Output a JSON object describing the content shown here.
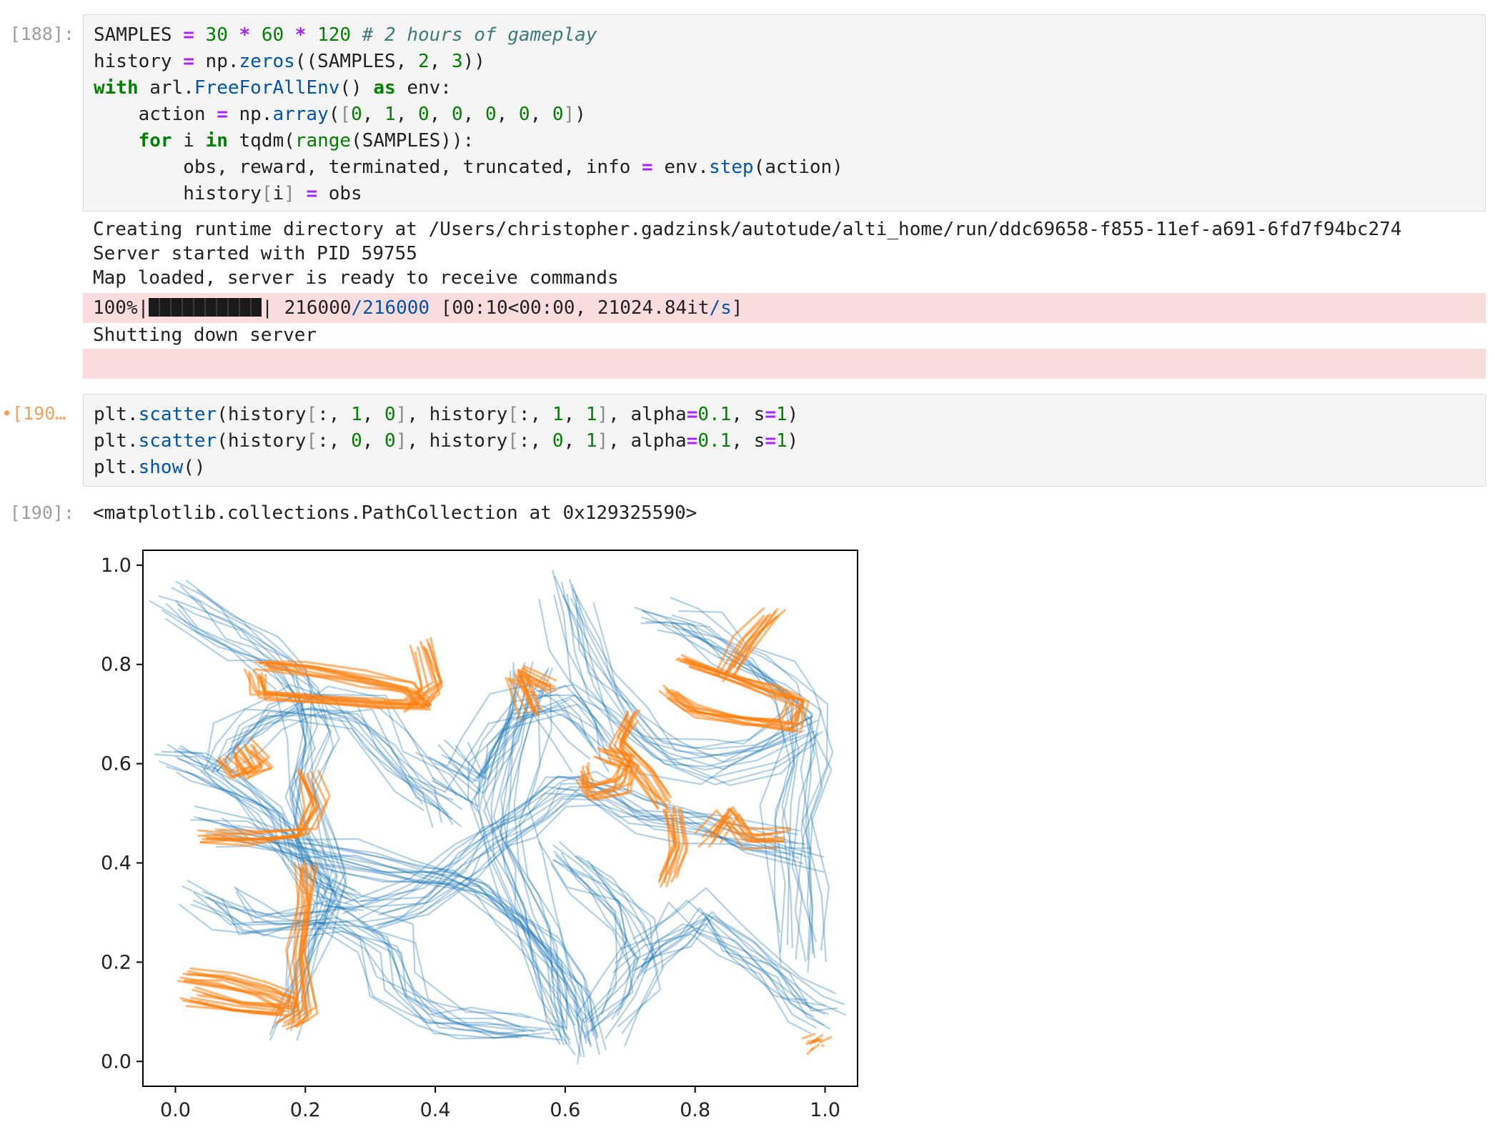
{
  "cells": [
    {
      "prompt": "[188]:",
      "code": {
        "line1": {
          "a": "SAMPLES ",
          "b": "=",
          "c": " ",
          "d": "30",
          "e": " ",
          "f": "*",
          "g": " ",
          "h": "60",
          "i": " ",
          "j": "*",
          "k": " ",
          "l": "120",
          "m": " ",
          "n": "# 2 hours of gameplay"
        },
        "line2": {
          "a": "history ",
          "b": "=",
          "c": " np.",
          "d": "zeros",
          "e": "((SAMPLES, ",
          "f": "2",
          "g": ", ",
          "h": "3",
          "i": "))"
        },
        "line3": {
          "a": "with",
          "b": " arl.",
          "c": "FreeForAllEnv",
          "d": "() ",
          "e": "as",
          "f": " env:"
        },
        "line4": {
          "a": "    action ",
          "b": "=",
          "c": " np.",
          "d": "array",
          "e": "(",
          "f": "[",
          "g": "0",
          "h": ", ",
          "i": "1",
          "j": ", ",
          "k": "0",
          "l": ", ",
          "m": "0",
          "n": ", ",
          "o": "0",
          "p": ", ",
          "q": "0",
          "r": ", ",
          "s": "0",
          "t": "]",
          "u": ")"
        },
        "line5": {
          "a": "    ",
          "b": "for",
          "c": " i ",
          "d": "in",
          "e": " tqdm(",
          "f": "range",
          "g": "(SAMPLES)):"
        },
        "line6": {
          "a": "        obs, reward, terminated, truncated, info ",
          "b": "=",
          "c": " env.",
          "d": "step",
          "e": "(action)"
        },
        "line7": {
          "a": "        history",
          "b": "[",
          "c": "i",
          "d": "]",
          "e": " ",
          "f": "=",
          "g": " obs"
        }
      },
      "stdout": [
        "Creating runtime directory at /Users/christopher.gadzinsk/autotude/alti_home/run/ddc69658-f855-11ef-a691-6fd7f94bc274",
        "Server started with PID 59755",
        "Map loaded, server is ready to receive commands"
      ],
      "progress": {
        "percent_label": "100%|",
        "after_bar": "| ",
        "done": "216000",
        "total": "/216000",
        "rest": " [00:10<00:00, 21024.84it",
        "unit": "/s",
        "close": "]",
        "fraction": 1.0
      },
      "stdout_after": "Shutting down server"
    },
    {
      "prompt": "•[190…",
      "code": {
        "line1": {
          "a": "plt.",
          "b": "scatter",
          "c": "(history",
          "d": "[",
          "e": ":, ",
          "f": "1",
          "g": ", ",
          "h": "0",
          "i": "]",
          "j": ", history",
          "k": "[",
          "l": ":, ",
          "m": "1",
          "n": ", ",
          "o": "1",
          "p": "]",
          "q": ", alpha",
          "r": "=",
          "s": "0.1",
          "t": ", s",
          "u": "=",
          "v": "1",
          "w": ")"
        },
        "line2": {
          "a": "plt.",
          "b": "scatter",
          "c": "(history",
          "d": "[",
          "e": ":, ",
          "f": "0",
          "g": ", ",
          "h": "0",
          "i": "]",
          "j": ", history",
          "k": "[",
          "l": ":, ",
          "m": "0",
          "n": ", ",
          "o": "1",
          "p": "]",
          "q": ", alpha",
          "r": "=",
          "s": "0.1",
          "t": ", s",
          "u": "=",
          "v": "1",
          "w": ")"
        },
        "line3": {
          "a": "plt.",
          "b": "show",
          "c": "()"
        }
      }
    },
    {
      "prompt": "[190]:",
      "output_text": "<matplotlib.collections.PathCollection at 0x129325590>"
    }
  ],
  "chart_data": {
    "type": "scatter",
    "xlim": [
      -0.05,
      1.05
    ],
    "ylim": [
      -0.05,
      1.03
    ],
    "xticks": [
      "0.0",
      "0.2",
      "0.4",
      "0.6",
      "0.8",
      "1.0"
    ],
    "yticks": [
      "0.0",
      "0.2",
      "0.4",
      "0.6",
      "0.8",
      "1.0"
    ],
    "grid": false,
    "colors": {
      "series1": "#1f77b4",
      "series2": "#ff7f0e"
    },
    "series": [
      {
        "alpha": 0.1,
        "trails": [
          [
            [
              0.0,
              0.93
            ],
            [
              0.05,
              0.9
            ],
            [
              0.1,
              0.85
            ],
            [
              0.15,
              0.82
            ],
            [
              0.2,
              0.75
            ],
            [
              0.22,
              0.65
            ],
            [
              0.2,
              0.55
            ],
            [
              0.22,
              0.45
            ],
            [
              0.25,
              0.35
            ],
            [
              0.22,
              0.25
            ],
            [
              0.2,
              0.15
            ],
            [
              0.18,
              0.08
            ]
          ],
          [
            [
              0.05,
              0.47
            ],
            [
              0.12,
              0.45
            ],
            [
              0.2,
              0.42
            ],
            [
              0.3,
              0.4
            ],
            [
              0.38,
              0.38
            ],
            [
              0.45,
              0.35
            ],
            [
              0.5,
              0.3
            ],
            [
              0.55,
              0.25
            ],
            [
              0.6,
              0.15
            ],
            [
              0.62,
              0.05
            ]
          ],
          [
            [
              0.3,
              0.3
            ],
            [
              0.38,
              0.33
            ],
            [
              0.45,
              0.4
            ],
            [
              0.5,
              0.45
            ],
            [
              0.55,
              0.5
            ],
            [
              0.6,
              0.55
            ],
            [
              0.65,
              0.55
            ],
            [
              0.72,
              0.5
            ],
            [
              0.8,
              0.48
            ],
            [
              0.88,
              0.45
            ],
            [
              0.97,
              0.42
            ]
          ],
          [
            [
              0.55,
              0.78
            ],
            [
              0.54,
              0.7
            ],
            [
              0.52,
              0.6
            ],
            [
              0.5,
              0.5
            ],
            [
              0.52,
              0.4
            ],
            [
              0.55,
              0.3
            ],
            [
              0.58,
              0.2
            ],
            [
              0.6,
              0.1
            ],
            [
              0.62,
              0.04
            ]
          ],
          [
            [
              0.6,
              0.95
            ],
            [
              0.62,
              0.85
            ],
            [
              0.66,
              0.75
            ],
            [
              0.7,
              0.68
            ],
            [
              0.75,
              0.62
            ],
            [
              0.82,
              0.6
            ],
            [
              0.9,
              0.62
            ],
            [
              0.97,
              0.68
            ]
          ],
          [
            [
              0.05,
              0.35
            ],
            [
              0.1,
              0.3
            ],
            [
              0.15,
              0.28
            ],
            [
              0.25,
              0.3
            ],
            [
              0.32,
              0.25
            ],
            [
              0.35,
              0.15
            ],
            [
              0.4,
              0.1
            ],
            [
              0.48,
              0.08
            ],
            [
              0.55,
              0.07
            ]
          ],
          [
            [
              0.7,
              0.2
            ],
            [
              0.75,
              0.25
            ],
            [
              0.8,
              0.3
            ],
            [
              0.85,
              0.25
            ],
            [
              0.9,
              0.2
            ],
            [
              0.95,
              0.12
            ],
            [
              0.99,
              0.1
            ]
          ],
          [
            [
              0.4,
              0.6
            ],
            [
              0.45,
              0.55
            ],
            [
              0.48,
              0.62
            ],
            [
              0.52,
              0.7
            ],
            [
              0.58,
              0.72
            ],
            [
              0.62,
              0.68
            ],
            [
              0.65,
              0.62
            ]
          ],
          [
            [
              0.07,
              0.6
            ],
            [
              0.1,
              0.65
            ],
            [
              0.15,
              0.7
            ],
            [
              0.2,
              0.72
            ],
            [
              0.28,
              0.7
            ],
            [
              0.33,
              0.62
            ],
            [
              0.38,
              0.55
            ],
            [
              0.42,
              0.5
            ]
          ],
          [
            [
              0.75,
              0.9
            ],
            [
              0.8,
              0.88
            ],
            [
              0.86,
              0.82
            ],
            [
              0.92,
              0.78
            ],
            [
              0.96,
              0.72
            ],
            [
              0.97,
              0.6
            ],
            [
              0.95,
              0.5
            ],
            [
              0.96,
              0.35
            ],
            [
              0.97,
              0.22
            ]
          ],
          [
            [
              0.0,
              0.62
            ],
            [
              0.04,
              0.6
            ],
            [
              0.1,
              0.56
            ],
            [
              0.15,
              0.5
            ],
            [
              0.18,
              0.42
            ],
            [
              0.22,
              0.36
            ],
            [
              0.28,
              0.33
            ]
          ],
          [
            [
              0.6,
              0.42
            ],
            [
              0.65,
              0.36
            ],
            [
              0.7,
              0.3
            ],
            [
              0.72,
              0.22
            ],
            [
              0.7,
              0.15
            ],
            [
              0.66,
              0.08
            ]
          ]
        ]
      },
      {
        "alpha": 0.1,
        "trails": [
          [
            [
              0.13,
              0.8
            ],
            [
              0.2,
              0.79
            ],
            [
              0.28,
              0.77
            ],
            [
              0.36,
              0.75
            ],
            [
              0.38,
              0.72
            ],
            [
              0.3,
              0.72
            ],
            [
              0.2,
              0.73
            ],
            [
              0.13,
              0.74
            ],
            [
              0.12,
              0.78
            ]
          ],
          [
            [
              0.78,
              0.8
            ],
            [
              0.85,
              0.77
            ],
            [
              0.92,
              0.74
            ],
            [
              0.96,
              0.72
            ],
            [
              0.95,
              0.67
            ],
            [
              0.88,
              0.68
            ],
            [
              0.8,
              0.7
            ],
            [
              0.76,
              0.74
            ]
          ],
          [
            [
              0.02,
              0.17
            ],
            [
              0.08,
              0.16
            ],
            [
              0.14,
              0.14
            ],
            [
              0.18,
              0.12
            ],
            [
              0.17,
              0.1
            ],
            [
              0.1,
              0.11
            ],
            [
              0.03,
              0.13
            ]
          ],
          [
            [
              0.08,
              0.62
            ],
            [
              0.1,
              0.58
            ],
            [
              0.13,
              0.6
            ],
            [
              0.11,
              0.64
            ]
          ],
          [
            [
              0.66,
              0.62
            ],
            [
              0.7,
              0.6
            ],
            [
              0.69,
              0.56
            ],
            [
              0.64,
              0.54
            ],
            [
              0.63,
              0.58
            ]
          ],
          [
            [
              0.2,
              0.58
            ],
            [
              0.22,
              0.52
            ],
            [
              0.2,
              0.46
            ],
            [
              0.12,
              0.45
            ],
            [
              0.05,
              0.45
            ]
          ],
          [
            [
              0.2,
              0.4
            ],
            [
              0.2,
              0.32
            ],
            [
              0.19,
              0.22
            ],
            [
              0.2,
              0.1
            ],
            [
              0.17,
              0.08
            ]
          ],
          [
            [
              0.77,
              0.5
            ],
            [
              0.78,
              0.43
            ],
            [
              0.76,
              0.36
            ]
          ],
          [
            [
              0.82,
              0.45
            ],
            [
              0.85,
              0.5
            ],
            [
              0.88,
              0.45
            ],
            [
              0.93,
              0.45
            ]
          ],
          [
            [
              0.38,
              0.84
            ],
            [
              0.4,
              0.76
            ],
            [
              0.37,
              0.72
            ]
          ],
          [
            [
              0.55,
              0.7
            ],
            [
              0.52,
              0.78
            ],
            [
              0.57,
              0.75
            ]
          ],
          [
            [
              0.75,
              0.52
            ],
            [
              0.72,
              0.58
            ],
            [
              0.68,
              0.64
            ],
            [
              0.7,
              0.7
            ]
          ],
          [
            [
              0.85,
              0.78
            ],
            [
              0.88,
              0.85
            ],
            [
              0.92,
              0.9
            ]
          ],
          [
            [
              0.98,
              0.03
            ],
            [
              0.99,
              0.04
            ]
          ]
        ]
      }
    ]
  }
}
